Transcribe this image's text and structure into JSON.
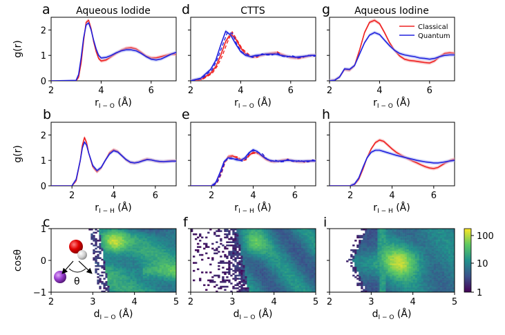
{
  "colors": {
    "classical": "#ee2020",
    "quantum": "#2020dd",
    "classical_band": "#f6a0a0",
    "quantum_band": "#a8b4f4"
  },
  "column_titles": [
    "Aqueous Iodide",
    "CTTS",
    "Aqueous Iodine"
  ],
  "panel_letters": [
    "a",
    "d",
    "g",
    "b",
    "e",
    "h",
    "c",
    "f",
    "i"
  ],
  "legend": {
    "classical": "Classical",
    "quantum": "Quantum"
  },
  "labels": {
    "ylabel_gr": "g(r)",
    "ylabel_cos": "cosθ",
    "x_rio_main": "r",
    "x_rio_sub": "I − O",
    "x_unit": " (Å)",
    "x_rih_main": "r",
    "x_rih_sub": "I − H",
    "x_dio_main": "d",
    "x_dio_sub": "I − O",
    "theta": "θ"
  },
  "colorbar": {
    "ticks": [
      "100",
      "10",
      "1"
    ],
    "scale": "log",
    "range": [
      1,
      200
    ]
  },
  "chart_data": [
    {
      "panel": "a",
      "type": "line",
      "title": "Aqueous Iodide",
      "xlim": [
        2,
        7
      ],
      "ylim": [
        0,
        2.5
      ],
      "xticks": [
        "2",
        "4",
        "6"
      ],
      "yticks": [
        "0",
        "1",
        "2"
      ],
      "series": [
        {
          "name": "Classical",
          "x": [
            3.0,
            3.1,
            3.2,
            3.3,
            3.4,
            3.5,
            3.6,
            3.7,
            3.8,
            3.9,
            4.0,
            4.2,
            4.4,
            4.6,
            4.8,
            5.0,
            5.2,
            5.4,
            5.6,
            5.8,
            6.0,
            6.2,
            6.4,
            6.6,
            6.8,
            7.0
          ],
          "y": [
            0.0,
            0.15,
            0.7,
            1.6,
            2.3,
            2.38,
            2.05,
            1.55,
            1.15,
            0.88,
            0.78,
            0.82,
            0.95,
            1.08,
            1.2,
            1.28,
            1.3,
            1.25,
            1.12,
            0.97,
            0.9,
            0.9,
            0.95,
            1.0,
            1.05,
            1.05
          ]
        },
        {
          "name": "Quantum",
          "x": [
            3.0,
            3.1,
            3.2,
            3.3,
            3.4,
            3.5,
            3.6,
            3.7,
            3.8,
            3.9,
            4.0,
            4.2,
            4.4,
            4.6,
            4.8,
            5.0,
            5.2,
            5.4,
            5.6,
            5.8,
            6.0,
            6.2,
            6.4,
            6.6,
            6.8,
            7.0
          ],
          "y": [
            0.02,
            0.25,
            0.9,
            1.7,
            2.2,
            2.28,
            2.0,
            1.6,
            1.25,
            1.0,
            0.9,
            0.92,
            1.0,
            1.1,
            1.18,
            1.22,
            1.22,
            1.18,
            1.08,
            0.95,
            0.85,
            0.82,
            0.86,
            0.95,
            1.05,
            1.12
          ]
        }
      ]
    },
    {
      "panel": "d",
      "type": "line",
      "title": "CTTS",
      "xlim": [
        2,
        7
      ],
      "ylim": [
        0,
        2.5
      ],
      "xticks": [
        "2",
        "4",
        "6"
      ],
      "yticks": [],
      "series": [
        {
          "name": "Classical",
          "x": [
            2.0,
            2.4,
            2.8,
            3.0,
            3.2,
            3.4,
            3.6,
            3.8,
            4.0,
            4.2,
            4.4,
            4.6,
            4.8,
            5.0,
            5.2,
            5.4,
            5.6,
            5.8,
            6.0,
            6.2,
            6.4,
            6.6,
            6.8,
            7.0
          ],
          "y": [
            0.0,
            0.05,
            0.3,
            0.55,
            1.0,
            1.55,
            1.85,
            1.65,
            1.3,
            1.05,
            0.95,
            0.95,
            1.0,
            1.05,
            1.08,
            1.1,
            1.05,
            0.98,
            0.92,
            0.9,
            0.92,
            0.95,
            1.0,
            1.0
          ]
        },
        {
          "name": "Quantum",
          "x": [
            2.0,
            2.4,
            2.8,
            3.0,
            3.2,
            3.4,
            3.6,
            3.8,
            4.0,
            4.2,
            4.4,
            4.6,
            4.8,
            5.0,
            5.2,
            5.4,
            5.6,
            5.8,
            6.0,
            6.2,
            6.4,
            6.6,
            6.8,
            7.0
          ],
          "y": [
            0.0,
            0.1,
            0.45,
            0.8,
            1.4,
            1.95,
            1.8,
            1.45,
            1.15,
            1.0,
            0.95,
            1.0,
            1.02,
            1.05,
            1.05,
            1.05,
            1.0,
            0.97,
            0.95,
            0.93,
            0.95,
            0.97,
            1.0,
            1.0
          ]
        }
      ]
    },
    {
      "panel": "g",
      "type": "line",
      "title": "Aqueous Iodine",
      "xlim": [
        2,
        7
      ],
      "ylim": [
        0,
        2.5
      ],
      "xticks": [
        "2",
        "4",
        "6"
      ],
      "yticks": [],
      "legend_position": "top-right",
      "series": [
        {
          "name": "Classical",
          "x": [
            2.0,
            2.2,
            2.4,
            2.6,
            2.8,
            3.0,
            3.2,
            3.4,
            3.6,
            3.8,
            4.0,
            4.2,
            4.4,
            4.6,
            4.8,
            5.0,
            5.2,
            5.4,
            5.6,
            5.8,
            6.0,
            6.2,
            6.4,
            6.6,
            6.8,
            7.0
          ],
          "y": [
            0.0,
            0.02,
            0.15,
            0.45,
            0.42,
            0.6,
            1.2,
            1.9,
            2.3,
            2.38,
            2.25,
            1.9,
            1.5,
            1.2,
            0.98,
            0.85,
            0.8,
            0.78,
            0.75,
            0.72,
            0.7,
            0.78,
            0.95,
            1.07,
            1.1,
            1.08
          ]
        },
        {
          "name": "Quantum",
          "x": [
            2.0,
            2.2,
            2.4,
            2.6,
            2.8,
            3.0,
            3.2,
            3.4,
            3.6,
            3.8,
            4.0,
            4.2,
            4.4,
            4.6,
            4.8,
            5.0,
            5.2,
            5.4,
            5.6,
            5.8,
            6.0,
            6.2,
            6.4,
            6.6,
            6.8,
            7.0
          ],
          "y": [
            0.0,
            0.02,
            0.15,
            0.47,
            0.45,
            0.6,
            1.05,
            1.5,
            1.8,
            1.9,
            1.82,
            1.6,
            1.38,
            1.2,
            1.08,
            1.02,
            0.98,
            0.95,
            0.9,
            0.88,
            0.85,
            0.88,
            0.95,
            1.0,
            1.02,
            1.02
          ]
        }
      ]
    },
    {
      "panel": "b",
      "type": "line",
      "xlim": [
        1,
        7
      ],
      "ylim": [
        0,
        2.5
      ],
      "xticks": [
        "2",
        "4",
        "6"
      ],
      "yticks": [
        "0",
        "1",
        "2"
      ],
      "series": [
        {
          "name": "Classical",
          "x": [
            2.0,
            2.2,
            2.4,
            2.5,
            2.6,
            2.7,
            2.8,
            3.0,
            3.2,
            3.4,
            3.6,
            3.8,
            4.0,
            4.2,
            4.4,
            4.6,
            4.8,
            5.0,
            5.2,
            5.4,
            5.6,
            5.8,
            6.0,
            6.2,
            6.4,
            6.6,
            6.8,
            7.0
          ],
          "y": [
            0.0,
            0.2,
            1.0,
            1.6,
            1.9,
            1.7,
            1.3,
            0.75,
            0.55,
            0.7,
            1.0,
            1.3,
            1.42,
            1.35,
            1.18,
            1.02,
            0.92,
            0.9,
            0.93,
            1.0,
            1.05,
            1.02,
            0.98,
            0.95,
            0.95,
            0.97,
            0.98,
            0.98
          ]
        },
        {
          "name": "Quantum",
          "x": [
            2.0,
            2.2,
            2.4,
            2.5,
            2.6,
            2.7,
            2.8,
            3.0,
            3.2,
            3.4,
            3.6,
            3.8,
            4.0,
            4.2,
            4.4,
            4.6,
            4.8,
            5.0,
            5.2,
            5.4,
            5.6,
            5.8,
            6.0,
            6.2,
            6.4,
            6.6,
            6.8,
            7.0
          ],
          "y": [
            0.0,
            0.25,
            1.0,
            1.5,
            1.72,
            1.6,
            1.3,
            0.8,
            0.6,
            0.72,
            1.0,
            1.25,
            1.38,
            1.33,
            1.18,
            1.03,
            0.93,
            0.9,
            0.93,
            0.98,
            1.03,
            1.02,
            0.98,
            0.96,
            0.95,
            0.96,
            0.97,
            0.97
          ]
        }
      ]
    },
    {
      "panel": "e",
      "type": "line",
      "xlim": [
        1,
        7
      ],
      "ylim": [
        0,
        2.5
      ],
      "xticks": [
        "2",
        "4",
        "6"
      ],
      "yticks": [],
      "series": [
        {
          "name": "Classical",
          "x": [
            2.0,
            2.2,
            2.4,
            2.6,
            2.8,
            3.0,
            3.2,
            3.4,
            3.6,
            3.8,
            4.0,
            4.2,
            4.4,
            4.6,
            4.8,
            5.0,
            5.2,
            5.4,
            5.6,
            5.8,
            6.0,
            6.2,
            6.4,
            6.6,
            6.8,
            7.0
          ],
          "y": [
            0.0,
            0.1,
            0.45,
            0.9,
            1.15,
            1.18,
            1.1,
            1.02,
            1.05,
            1.2,
            1.32,
            1.3,
            1.18,
            1.05,
            0.98,
            0.95,
            0.97,
            1.0,
            1.02,
            1.0,
            0.97,
            0.95,
            0.95,
            0.97,
            0.98,
            0.98
          ]
        },
        {
          "name": "Quantum",
          "x": [
            2.0,
            2.2,
            2.4,
            2.6,
            2.8,
            3.0,
            3.2,
            3.4,
            3.6,
            3.8,
            4.0,
            4.2,
            4.4,
            4.6,
            4.8,
            5.0,
            5.2,
            5.4,
            5.6,
            5.8,
            6.0,
            6.2,
            6.4,
            6.6,
            6.8,
            7.0
          ],
          "y": [
            0.0,
            0.12,
            0.5,
            0.95,
            1.1,
            1.08,
            1.02,
            1.0,
            1.1,
            1.3,
            1.42,
            1.35,
            1.2,
            1.08,
            1.0,
            0.97,
            0.97,
            0.98,
            1.0,
            1.0,
            0.98,
            0.97,
            0.97,
            0.98,
            0.98,
            0.98
          ]
        }
      ]
    },
    {
      "panel": "h",
      "type": "line",
      "xlim": [
        1,
        7
      ],
      "ylim": [
        0,
        2.5
      ],
      "xticks": [
        "2",
        "4",
        "6"
      ],
      "yticks": [],
      "series": [
        {
          "name": "Classical",
          "x": [
            2.0,
            2.2,
            2.4,
            2.6,
            2.8,
            3.0,
            3.2,
            3.4,
            3.6,
            3.8,
            4.0,
            4.2,
            4.4,
            4.6,
            4.8,
            5.0,
            5.2,
            5.4,
            5.6,
            5.8,
            6.0,
            6.2,
            6.4,
            6.6,
            6.8,
            7.0
          ],
          "y": [
            0.0,
            0.05,
            0.25,
            0.65,
            1.1,
            1.45,
            1.7,
            1.8,
            1.75,
            1.6,
            1.45,
            1.32,
            1.22,
            1.13,
            1.05,
            0.97,
            0.9,
            0.82,
            0.75,
            0.7,
            0.68,
            0.72,
            0.82,
            0.92,
            1.0,
            1.05
          ]
        },
        {
          "name": "Quantum",
          "x": [
            2.0,
            2.2,
            2.4,
            2.6,
            2.8,
            3.0,
            3.2,
            3.4,
            3.6,
            3.8,
            4.0,
            4.2,
            4.4,
            4.6,
            4.8,
            5.0,
            5.2,
            5.4,
            5.6,
            5.8,
            6.0,
            6.2,
            6.4,
            6.6,
            6.8,
            7.0
          ],
          "y": [
            0.0,
            0.07,
            0.3,
            0.72,
            1.1,
            1.32,
            1.4,
            1.4,
            1.35,
            1.3,
            1.25,
            1.2,
            1.16,
            1.12,
            1.08,
            1.04,
            1.0,
            0.97,
            0.94,
            0.92,
            0.9,
            0.9,
            0.92,
            0.95,
            0.98,
            1.0
          ]
        }
      ]
    },
    {
      "panel": "c",
      "type": "heatmap",
      "xlim": [
        2,
        5
      ],
      "ylim": [
        -1,
        1
      ],
      "xticks": [
        "2",
        "3",
        "4",
        "5"
      ],
      "yticks": [
        "−1",
        "0",
        "1"
      ],
      "color_scale": "log",
      "color_range": [
        1,
        200
      ]
    },
    {
      "panel": "f",
      "type": "heatmap",
      "xlim": [
        2,
        5
      ],
      "ylim": [
        -1,
        1
      ],
      "xticks": [
        "2",
        "3",
        "4",
        "5"
      ],
      "yticks": [],
      "color_scale": "log",
      "color_range": [
        1,
        200
      ]
    },
    {
      "panel": "i",
      "type": "heatmap",
      "xlim": [
        2,
        5
      ],
      "ylim": [
        -1,
        1
      ],
      "xticks": [
        "2",
        "3",
        "4",
        "5"
      ],
      "yticks": [],
      "color_scale": "log",
      "color_range": [
        1,
        200
      ]
    }
  ]
}
